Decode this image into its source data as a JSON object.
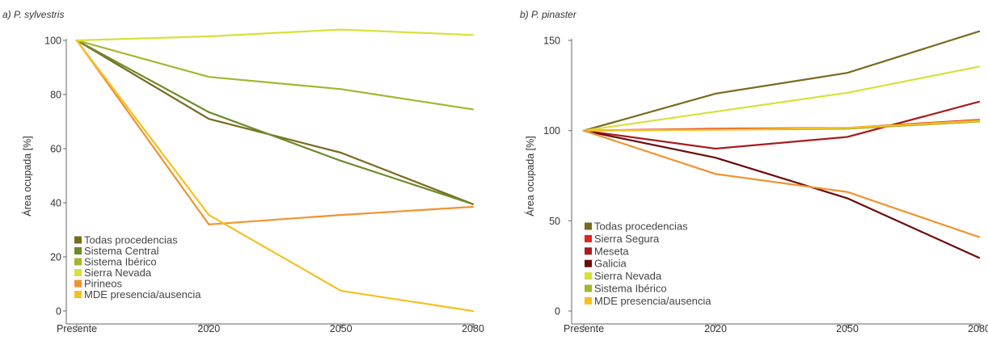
{
  "chart_data": [
    {
      "type": "line",
      "title": "a) P. sylvestris",
      "xlabel": "",
      "ylabel": "Área ocupada [%]",
      "categories": [
        "Presente",
        "2020",
        "2050",
        "2080"
      ],
      "y_ticks": [
        "0",
        "20",
        "40",
        "60",
        "80",
        "100"
      ],
      "ylim": [
        0,
        100
      ],
      "legend_position": "bottom-left",
      "series": [
        {
          "name": "Todas procedencias",
          "color": "#7a6a1e",
          "values": [
            100,
            71,
            58.5,
            39.5
          ]
        },
        {
          "name": "Sistema Central",
          "color": "#6f8a2a",
          "values": [
            100,
            73.5,
            55.5,
            39.5
          ]
        },
        {
          "name": "Sistema Ibérico",
          "color": "#a6b52e",
          "values": [
            100,
            86.5,
            82,
            74.5
          ]
        },
        {
          "name": "Sierra Nevada",
          "color": "#d8e03a",
          "values": [
            100,
            101.5,
            104,
            102
          ]
        },
        {
          "name": "Pirineos",
          "color": "#f0932e",
          "values": [
            100,
            32,
            35.5,
            38.5
          ]
        },
        {
          "name": "MDE presencia/ausencia",
          "color": "#f5c020",
          "values": [
            100,
            35.5,
            7.5,
            0
          ]
        }
      ]
    },
    {
      "type": "line",
      "title": "b) P. pinaster",
      "xlabel": "",
      "ylabel": "Área ocupada [%]",
      "categories": [
        "Presente",
        "2020",
        "2050",
        "2080"
      ],
      "y_ticks": [
        "0",
        "50",
        "100",
        "150"
      ],
      "ylim": [
        0,
        150
      ],
      "legend_position": "bottom-left",
      "series": [
        {
          "name": "Todas procedencias",
          "color": "#7a6a1e",
          "values": [
            100,
            120.5,
            132,
            155
          ]
        },
        {
          "name": "Sierra Segura",
          "color": "#e0231e",
          "values": [
            100,
            101,
            101.5,
            106
          ]
        },
        {
          "name": "Meseta",
          "color": "#a81c1c",
          "values": [
            100,
            90,
            96.5,
            116
          ]
        },
        {
          "name": "Galicia",
          "color": "#6b0b0b",
          "values": [
            100,
            85,
            62.5,
            29.5
          ]
        },
        {
          "name": "Sierra Nevada",
          "color": "#d8e03a",
          "values": [
            100,
            110.5,
            121,
            135.5
          ]
        },
        {
          "name": "Sistema Ibérico",
          "color": "#a6b52e",
          "values": [
            100,
            100.5,
            101,
            105
          ]
        },
        {
          "name": "MDE presencia/ausencia",
          "color": "#f5c020",
          "values": [
            100,
            100.5,
            101.5,
            105.5
          ]
        },
        {
          "name": "",
          "color": "#f0932e",
          "values": [
            100,
            76,
            66,
            41
          ]
        }
      ]
    }
  ]
}
